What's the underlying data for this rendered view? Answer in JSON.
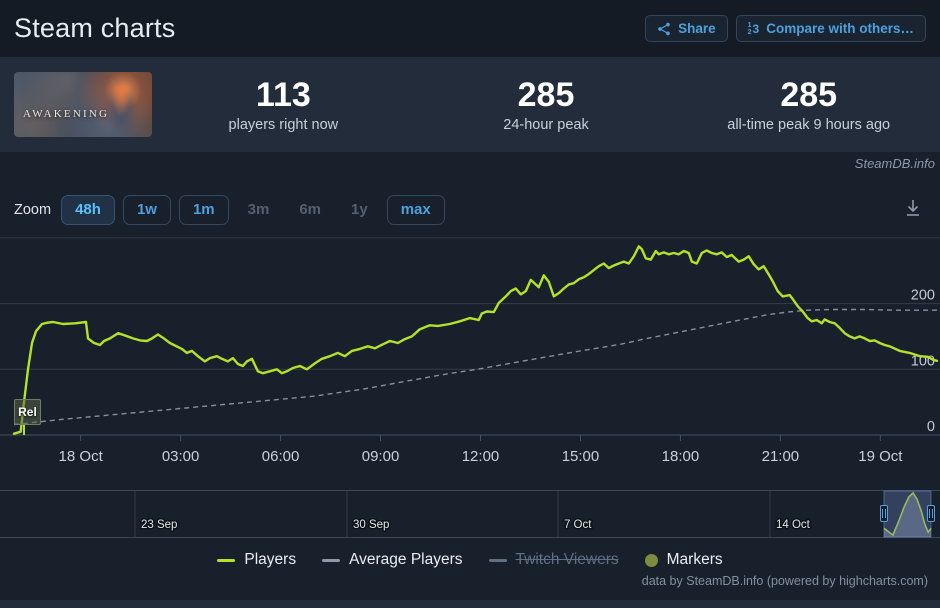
{
  "header": {
    "title": "Steam charts",
    "share_label": "Share",
    "compare_label": "Compare with others…"
  },
  "stats": {
    "game_title": "AWAKENING",
    "items": [
      {
        "value": "113",
        "label": "players right now"
      },
      {
        "value": "285",
        "label": "24-hour peak"
      },
      {
        "value": "285",
        "label": "all-time peak 9 hours ago"
      }
    ]
  },
  "watermark": "SteamDB.info",
  "zoom": {
    "label": "Zoom",
    "buttons": [
      {
        "label": "48h",
        "state": "active"
      },
      {
        "label": "1w",
        "state": "enabled"
      },
      {
        "label": "1m",
        "state": "enabled"
      },
      {
        "label": "3m",
        "state": "disabled"
      },
      {
        "label": "6m",
        "state": "disabled"
      },
      {
        "label": "1y",
        "state": "disabled"
      },
      {
        "label": "max",
        "state": "enabled"
      }
    ]
  },
  "legend": {
    "items": [
      {
        "label": "Players",
        "swatch": "line",
        "color": "#b3e228",
        "disabled": false
      },
      {
        "label": "Average Players",
        "swatch": "line",
        "color": "#8e9aa6",
        "disabled": false
      },
      {
        "label": "Twitch Viewers",
        "swatch": "line",
        "color": "#5d7085",
        "disabled": true
      },
      {
        "label": "Markers",
        "swatch": "circle",
        "color": "#7d8c3f",
        "disabled": false
      }
    ]
  },
  "credits": "data by SteamDB.info (powered by highcharts.com)",
  "colors": {
    "accent_blue": "#4ba0dd",
    "active_blue": "#57c1ff",
    "players_green": "#b3e228",
    "avg_gray": "#98a4b0",
    "marker_olive": "#7d8c3f",
    "bg_header": "#141b24",
    "bg_panel": "#222c3a",
    "bg_chart": "#18202b",
    "gridline": "#333d49",
    "axis": "#46525f",
    "tick_text": "#c9d2da",
    "nav_selection": "rgba(100,122,185,0.36)"
  },
  "chart_data": {
    "type": "line",
    "title": "Steam charts",
    "x_unit": "hours since release (approx 17 Oct 22:00)",
    "x_range": [
      0,
      27.7
    ],
    "ylim": [
      0,
      300
    ],
    "grid": true,
    "legend_position": "bottom",
    "y_ticks": [
      0,
      100,
      200
    ],
    "x_ticks": [
      {
        "t": 2,
        "label": "18 Oct"
      },
      {
        "t": 5,
        "label": "03:00"
      },
      {
        "t": 8,
        "label": "06:00"
      },
      {
        "t": 11,
        "label": "09:00"
      },
      {
        "t": 14,
        "label": "12:00"
      },
      {
        "t": 17,
        "label": "15:00"
      },
      {
        "t": 20,
        "label": "18:00"
      },
      {
        "t": 23,
        "label": "21:00"
      },
      {
        "t": 26,
        "label": "19 Oct"
      }
    ],
    "series": [
      {
        "name": "Players",
        "color": "#b3e228",
        "dash": "solid",
        "points": [
          [
            0,
            2
          ],
          [
            0.2,
            5
          ],
          [
            0.3,
            50
          ],
          [
            0.42,
            100
          ],
          [
            0.54,
            140
          ],
          [
            0.66,
            158
          ],
          [
            0.84,
            169
          ],
          [
            1.0,
            171
          ],
          [
            1.17,
            172
          ],
          [
            1.47,
            169
          ],
          [
            1.83,
            170
          ],
          [
            2.16,
            172
          ],
          [
            2.22,
            147
          ],
          [
            2.4,
            140
          ],
          [
            2.58,
            137
          ],
          [
            2.7,
            143
          ],
          [
            2.88,
            147
          ],
          [
            3.12,
            155
          ],
          [
            3.3,
            152
          ],
          [
            3.57,
            147
          ],
          [
            3.78,
            144
          ],
          [
            3.99,
            143
          ],
          [
            4.14,
            147
          ],
          [
            4.32,
            153
          ],
          [
            4.5,
            147
          ],
          [
            4.68,
            140
          ],
          [
            4.8,
            137
          ],
          [
            5.04,
            131
          ],
          [
            5.19,
            125
          ],
          [
            5.34,
            128
          ],
          [
            5.52,
            120
          ],
          [
            5.73,
            112
          ],
          [
            5.88,
            117
          ],
          [
            6.09,
            120
          ],
          [
            6.24,
            116
          ],
          [
            6.42,
            112
          ],
          [
            6.57,
            117
          ],
          [
            6.72,
            108
          ],
          [
            6.87,
            105
          ],
          [
            6.99,
            112
          ],
          [
            7.14,
            116
          ],
          [
            7.32,
            97
          ],
          [
            7.47,
            94
          ],
          [
            7.68,
            97
          ],
          [
            7.89,
            100
          ],
          [
            8.04,
            94
          ],
          [
            8.19,
            97
          ],
          [
            8.37,
            102
          ],
          [
            8.58,
            105
          ],
          [
            8.79,
            100
          ],
          [
            9.03,
            109
          ],
          [
            9.24,
            116
          ],
          [
            9.48,
            120
          ],
          [
            9.72,
            125
          ],
          [
            9.93,
            120
          ],
          [
            10.14,
            128
          ],
          [
            10.38,
            131
          ],
          [
            10.62,
            135
          ],
          [
            10.83,
            132
          ],
          [
            11.07,
            138
          ],
          [
            11.28,
            143
          ],
          [
            11.52,
            140
          ],
          [
            11.73,
            146
          ],
          [
            11.94,
            150
          ],
          [
            12.18,
            161
          ],
          [
            12.48,
            167
          ],
          [
            12.72,
            166
          ],
          [
            13.08,
            169
          ],
          [
            13.38,
            173
          ],
          [
            13.68,
            178
          ],
          [
            13.95,
            175
          ],
          [
            14.04,
            185
          ],
          [
            14.19,
            188
          ],
          [
            14.4,
            187
          ],
          [
            14.55,
            201
          ],
          [
            14.76,
            211
          ],
          [
            14.91,
            219
          ],
          [
            15.06,
            223
          ],
          [
            15.21,
            214
          ],
          [
            15.36,
            219
          ],
          [
            15.51,
            236
          ],
          [
            15.66,
            229
          ],
          [
            15.75,
            225
          ],
          [
            15.9,
            243
          ],
          [
            16.05,
            233
          ],
          [
            16.2,
            211
          ],
          [
            16.35,
            216
          ],
          [
            16.5,
            223
          ],
          [
            16.65,
            229
          ],
          [
            16.8,
            231
          ],
          [
            16.95,
            237
          ],
          [
            17.1,
            240
          ],
          [
            17.25,
            245
          ],
          [
            17.4,
            251
          ],
          [
            17.55,
            257
          ],
          [
            17.7,
            261
          ],
          [
            17.85,
            254
          ],
          [
            18.0,
            258
          ],
          [
            18.15,
            261
          ],
          [
            18.3,
            264
          ],
          [
            18.45,
            261
          ],
          [
            18.6,
            272
          ],
          [
            18.75,
            287
          ],
          [
            18.84,
            283
          ],
          [
            18.96,
            269
          ],
          [
            19.11,
            267
          ],
          [
            19.26,
            280
          ],
          [
            19.35,
            275
          ],
          [
            19.5,
            278
          ],
          [
            19.65,
            275
          ],
          [
            19.8,
            277
          ],
          [
            19.95,
            275
          ],
          [
            20.1,
            280
          ],
          [
            20.25,
            277
          ],
          [
            20.34,
            264
          ],
          [
            20.49,
            261
          ],
          [
            20.64,
            277
          ],
          [
            20.79,
            281
          ],
          [
            20.94,
            277
          ],
          [
            21.09,
            275
          ],
          [
            21.24,
            278
          ],
          [
            21.39,
            271
          ],
          [
            21.54,
            274
          ],
          [
            21.75,
            264
          ],
          [
            21.9,
            267
          ],
          [
            22.05,
            272
          ],
          [
            22.2,
            260
          ],
          [
            22.35,
            252
          ],
          [
            22.5,
            257
          ],
          [
            22.68,
            242
          ],
          [
            22.77,
            234
          ],
          [
            22.92,
            219
          ],
          [
            23.07,
            211
          ],
          [
            23.28,
            213
          ],
          [
            23.37,
            207
          ],
          [
            23.52,
            196
          ],
          [
            23.67,
            188
          ],
          [
            23.82,
            178
          ],
          [
            23.94,
            173
          ],
          [
            24.09,
            175
          ],
          [
            24.24,
            170
          ],
          [
            24.33,
            176
          ],
          [
            24.48,
            172
          ],
          [
            24.63,
            170
          ],
          [
            24.78,
            163
          ],
          [
            24.93,
            155
          ],
          [
            25.08,
            150
          ],
          [
            25.23,
            147
          ],
          [
            25.38,
            150
          ],
          [
            25.53,
            147
          ],
          [
            25.68,
            143
          ],
          [
            25.83,
            144
          ],
          [
            25.98,
            140
          ],
          [
            26.13,
            137
          ],
          [
            26.28,
            135
          ],
          [
            26.58,
            128
          ],
          [
            26.88,
            125
          ],
          [
            27.18,
            120
          ],
          [
            27.42,
            119
          ],
          [
            27.6,
            114
          ],
          [
            27.7,
            113
          ]
        ]
      },
      {
        "name": "Average Players",
        "color": "#98a4b0",
        "dash": "dashed",
        "points": [
          [
            0,
            16
          ],
          [
            1.5,
            24
          ],
          [
            3,
            31
          ],
          [
            4.5,
            38
          ],
          [
            6,
            45
          ],
          [
            7.5,
            52
          ],
          [
            9,
            59
          ],
          [
            10.5,
            70
          ],
          [
            12,
            84
          ],
          [
            13,
            93
          ],
          [
            13.9,
            100
          ],
          [
            15,
            110
          ],
          [
            16,
            119
          ],
          [
            17,
            128
          ],
          [
            18.2,
            138
          ],
          [
            19,
            147
          ],
          [
            20,
            157
          ],
          [
            21,
            167
          ],
          [
            21.8,
            175
          ],
          [
            22.6,
            183
          ],
          [
            23.2,
            187
          ],
          [
            23.8,
            190
          ],
          [
            24.5,
            191
          ],
          [
            25.5,
            191
          ],
          [
            26.5,
            190
          ],
          [
            27.7,
            190
          ]
        ]
      }
    ],
    "flags": [
      {
        "t": 0.3,
        "label": "Rel"
      }
    ],
    "navigator": {
      "labels": [
        {
          "x": 0.1436,
          "label": "23 Sep"
        },
        {
          "x": 0.3691,
          "label": "30 Sep"
        },
        {
          "x": 0.5936,
          "label": "7 Oct"
        },
        {
          "x": 0.8191,
          "label": "14 Oct"
        }
      ],
      "gridlines_x": [
        0.1436,
        0.3691,
        0.5936,
        0.8191
      ],
      "selection": [
        0.9404,
        0.9904
      ],
      "spark": [
        [
          0.0,
          0.18
        ],
        [
          0.11,
          0.09
        ],
        [
          0.19,
          0.02
        ],
        [
          0.32,
          0.36
        ],
        [
          0.43,
          0.68
        ],
        [
          0.53,
          0.91
        ],
        [
          0.62,
          1.0
        ],
        [
          0.7,
          0.86
        ],
        [
          0.79,
          0.59
        ],
        [
          0.87,
          0.27
        ],
        [
          0.94,
          0.09
        ],
        [
          1.0,
          0.18
        ]
      ]
    }
  }
}
